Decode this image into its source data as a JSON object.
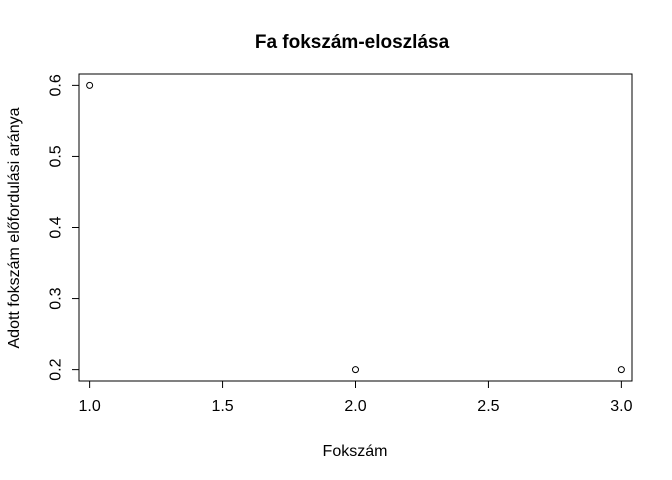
{
  "chart_data": {
    "type": "scatter",
    "title": "Fa fokszám-eloszlása",
    "xlabel": "Fokszám",
    "ylabel": "Adott fokszám előfordulási aránya",
    "x": [
      1,
      2,
      3
    ],
    "y": [
      0.6,
      0.2,
      0.2
    ],
    "xlim": [
      0.96,
      3.04
    ],
    "ylim": [
      0.184,
      0.616
    ],
    "xticks": [
      1.0,
      1.5,
      2.0,
      2.5,
      3.0
    ],
    "xtick_labels": [
      "1.0",
      "1.5",
      "2.0",
      "2.5",
      "3.0"
    ],
    "yticks": [
      0.2,
      0.3,
      0.4,
      0.5,
      0.6
    ],
    "ytick_labels": [
      "0.2",
      "0.3",
      "0.4",
      "0.5",
      "0.6"
    ],
    "grid": false,
    "marker": "open-circle",
    "colors": {
      "points": "#000000",
      "axes": "#000000",
      "background": "#ffffff"
    }
  }
}
